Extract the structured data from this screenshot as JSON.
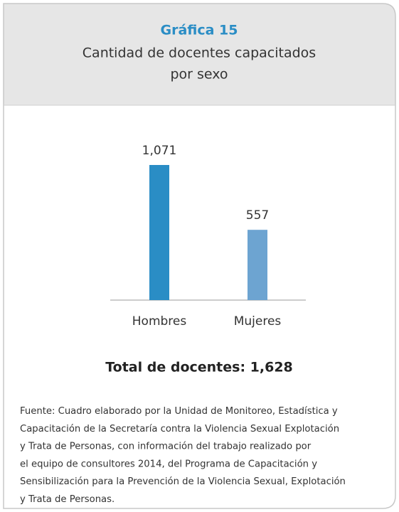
{
  "chart_data": {
    "type": "bar",
    "label": "Gráfica 15",
    "title": [
      "Cantidad de docentes capacitados",
      "por sexo"
    ],
    "categories": [
      "Hombres",
      "Mujeres"
    ],
    "values": [
      1071,
      557
    ],
    "value_labels": [
      "1,071",
      "557"
    ],
    "colors": [
      "#2a8dc5",
      "#6da4d1"
    ],
    "total": "Total de docentes: 1,628",
    "source": [
      "Fuente: Cuadro elaborado por la Unidad de Monitoreo, Estadística y",
      "Capacitación de la Secretaría contra la Violencia Sexual Explotación",
      "y Trata de Personas, con información del trabajo realizado por",
      "el equipo de consultores 2014, del Programa de Capacitación y",
      "Sensibilización para la Prevención de la Violencia Sexual, Explotación",
      "y Trata de Personas."
    ]
  }
}
